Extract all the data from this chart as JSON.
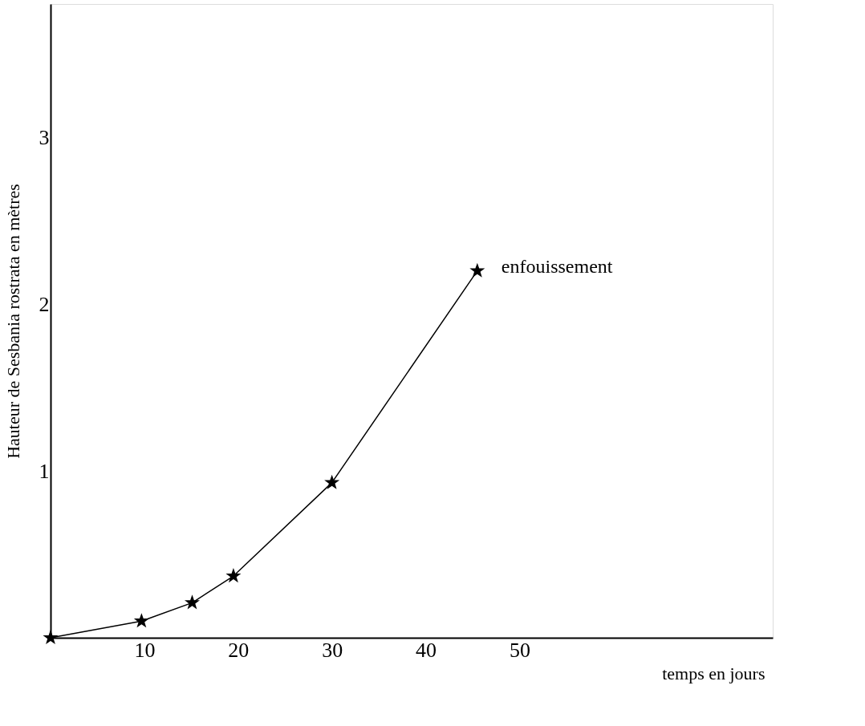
{
  "chart_data": {
    "type": "line",
    "xlabel": "temps en jours",
    "ylabel": "Hauteur de Sesbania rostrata en mètres",
    "series": [
      {
        "color": "#000000",
        "x": [
          0,
          9.7,
          15.1,
          19.5,
          30,
          45.5
        ],
        "values": [
          0,
          0.1,
          0.21,
          0.37,
          0.93,
          2.2
        ]
      }
    ],
    "xlim": [
      0,
      77
    ],
    "ylim": [
      0,
      3.8
    ],
    "xticks": [
      10,
      20,
      30,
      40,
      50
    ],
    "yticks": [
      1,
      2,
      3
    ],
    "grid": false,
    "marker": "star",
    "line_style": "solid",
    "annotations": [
      {
        "text": "enfouissement",
        "x": 45.5,
        "y": 2.2
      }
    ]
  }
}
